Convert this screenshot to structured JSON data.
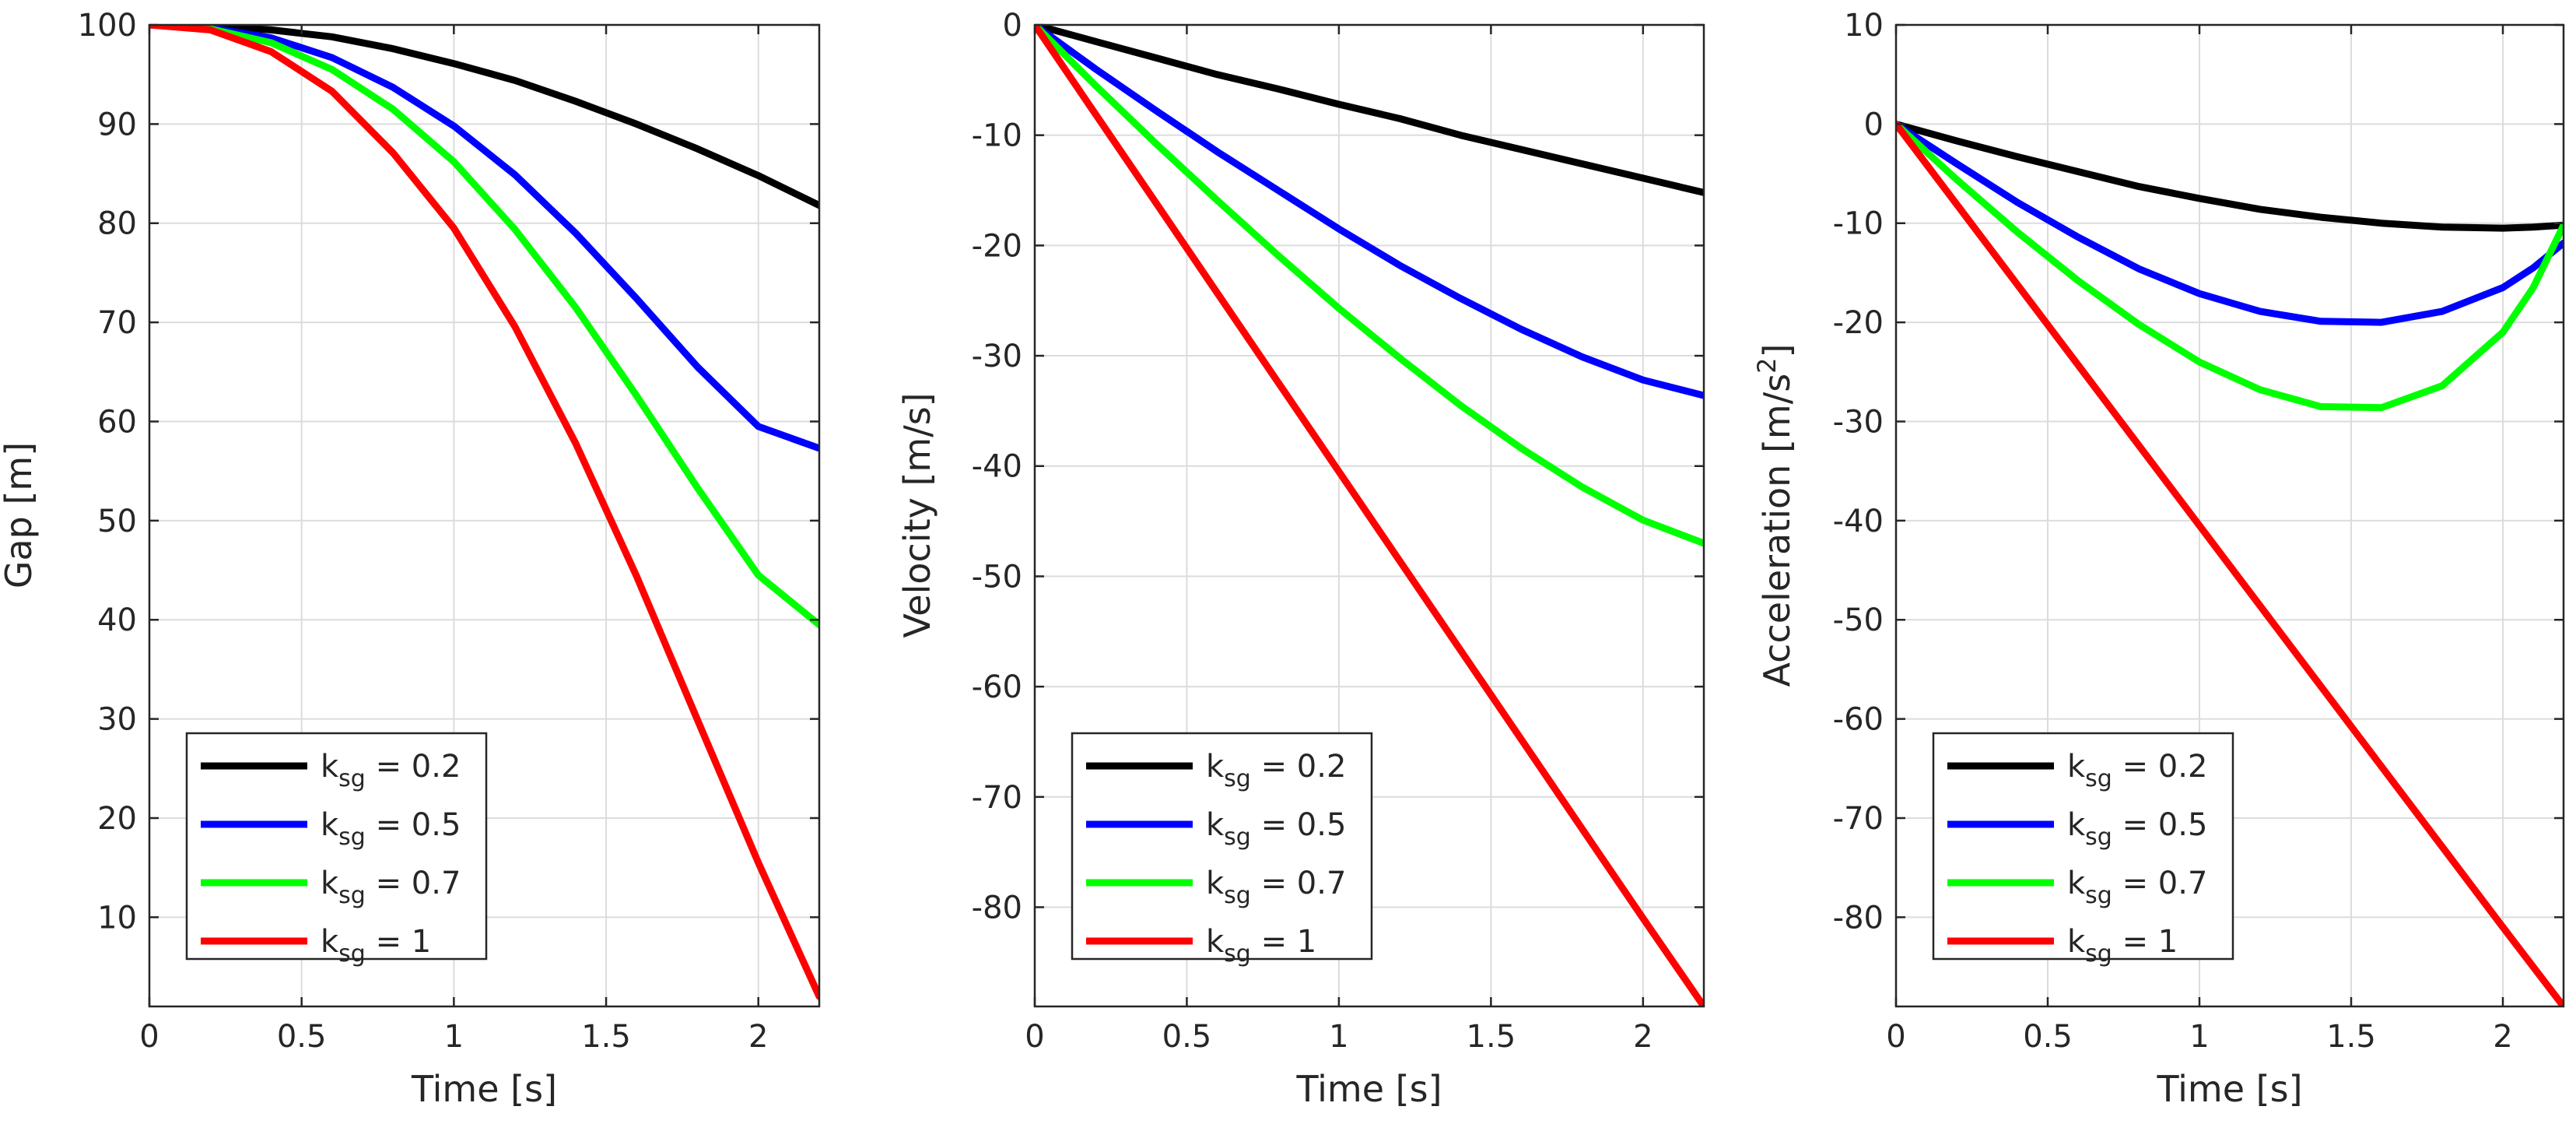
{
  "chart_data": [
    {
      "type": "line",
      "xlabel": "Time [s]",
      "ylabel": "Gap [m]",
      "xlim": [
        0,
        2.2
      ],
      "ylim": [
        1,
        100
      ],
      "xticks": [
        0,
        0.5,
        1,
        1.5,
        2
      ],
      "xtick_labels": [
        "0",
        "0.5",
        "1",
        "1.5",
        "2"
      ],
      "yticks": [
        10,
        20,
        30,
        40,
        50,
        60,
        70,
        80,
        90,
        100
      ],
      "ytick_labels": [
        "10",
        "20",
        "30",
        "40",
        "50",
        "60",
        "70",
        "80",
        "90",
        "100"
      ],
      "grid": true,
      "legend_position": "bottom-left",
      "x": [
        0,
        0.2,
        0.4,
        0.6,
        0.8,
        1.0,
        1.2,
        1.4,
        1.6,
        1.8,
        2.0,
        2.2
      ],
      "series": [
        {
          "name": "k_sg = 0.2",
          "color": "#000000",
          "values": [
            100,
            99.9,
            99.5,
            98.8,
            97.6,
            96.1,
            94.4,
            92.3,
            90.0,
            87.5,
            84.8,
            81.8
          ]
        },
        {
          "name": "k_sg = 0.5",
          "color": "#0000ff",
          "values": [
            100,
            99.7,
            98.7,
            96.7,
            93.7,
            89.8,
            84.9,
            79.0,
            72.4,
            65.5,
            59.5,
            57.3
          ]
        },
        {
          "name": "k_sg = 0.7",
          "color": "#00ff00",
          "values": [
            100,
            99.6,
            98.2,
            95.5,
            91.5,
            86.2,
            79.4,
            71.5,
            62.6,
            53.3,
            44.5,
            39.5
          ]
        },
        {
          "name": "k_sg = 1",
          "color": "#ff0000",
          "values": [
            100,
            99.5,
            97.3,
            93.3,
            87.1,
            79.5,
            69.6,
            57.8,
            44.4,
            29.9,
            15.5,
            2.0
          ]
        }
      ]
    },
    {
      "type": "line",
      "xlabel": "Time [s]",
      "ylabel": "Velocity [m/s]",
      "xlim": [
        0,
        2.2
      ],
      "ylim": [
        -89,
        0
      ],
      "xticks": [
        0,
        0.5,
        1,
        1.5,
        2
      ],
      "xtick_labels": [
        "0",
        "0.5",
        "1",
        "1.5",
        "2"
      ],
      "yticks": [
        0,
        -10,
        -20,
        -30,
        -40,
        -50,
        -60,
        -70,
        -80
      ],
      "ytick_labels": [
        "0",
        "-10",
        "-20",
        "-30",
        "-40",
        "-50",
        "-60",
        "-70",
        "-80"
      ],
      "grid": true,
      "legend_position": "bottom-left",
      "x": [
        0,
        0.2,
        0.4,
        0.6,
        0.8,
        1.0,
        1.2,
        1.4,
        1.6,
        1.8,
        2.0,
        2.2
      ],
      "series": [
        {
          "name": "k_sg = 0.2",
          "color": "#000000",
          "values": [
            0,
            -1.5,
            -3.0,
            -4.5,
            -5.8,
            -7.2,
            -8.5,
            -10.0,
            -11.3,
            -12.6,
            -13.9,
            -15.2
          ]
        },
        {
          "name": "k_sg = 0.5",
          "color": "#0000ff",
          "values": [
            0,
            -4.0,
            -7.8,
            -11.5,
            -15.0,
            -18.5,
            -21.8,
            -24.8,
            -27.6,
            -30.1,
            -32.2,
            -33.6
          ]
        },
        {
          "name": "k_sg = 0.7",
          "color": "#00ff00",
          "values": [
            0,
            -5.5,
            -10.8,
            -15.9,
            -20.9,
            -25.7,
            -30.2,
            -34.5,
            -38.4,
            -41.9,
            -44.9,
            -47.0
          ]
        },
        {
          "name": "k_sg = 1",
          "color": "#ff0000",
          "values": [
            0,
            -8.1,
            -16.2,
            -24.3,
            -32.4,
            -40.5,
            -48.6,
            -56.7,
            -64.8,
            -72.9,
            -81.0,
            -89.0
          ]
        }
      ]
    },
    {
      "type": "line",
      "xlabel": "Time [s]",
      "ylabel": "Acceleration [m/s",
      "ylabel_sup": "2",
      "ylabel_end": "]",
      "xlim": [
        0,
        2.2
      ],
      "ylim": [
        -89,
        10
      ],
      "xticks": [
        0,
        0.5,
        1,
        1.5,
        2
      ],
      "xtick_labels": [
        "0",
        "0.5",
        "1",
        "1.5",
        "2"
      ],
      "yticks": [
        10,
        0,
        -10,
        -20,
        -30,
        -40,
        -50,
        -60,
        -70,
        -80
      ],
      "ytick_labels": [
        "10",
        "0",
        "-10",
        "-20",
        "-30",
        "-40",
        "-50",
        "-60",
        "-70",
        "-80"
      ],
      "grid": true,
      "legend_position": "bottom-left",
      "x": [
        0,
        0.2,
        0.4,
        0.6,
        0.8,
        1.0,
        1.2,
        1.4,
        1.6,
        1.8,
        2.0,
        2.1,
        2.2
      ],
      "series": [
        {
          "name": "k_sg = 0.2",
          "color": "#000000",
          "values": [
            0,
            -1.7,
            -3.3,
            -4.8,
            -6.3,
            -7.5,
            -8.6,
            -9.4,
            -10.0,
            -10.4,
            -10.5,
            -10.4,
            -10.2
          ]
        },
        {
          "name": "k_sg = 0.5",
          "color": "#0000ff",
          "values": [
            0,
            -4.0,
            -7.9,
            -11.4,
            -14.6,
            -17.1,
            -18.9,
            -19.9,
            -20.0,
            -18.9,
            -16.5,
            -14.5,
            -12.0
          ]
        },
        {
          "name": "k_sg = 0.7",
          "color": "#00ff00",
          "values": [
            0,
            -5.6,
            -10.9,
            -15.8,
            -20.2,
            -24.0,
            -26.8,
            -28.5,
            -28.6,
            -26.4,
            -21.0,
            -16.5,
            -10.2
          ]
        },
        {
          "name": "k_sg = 1",
          "color": "#ff0000",
          "values": [
            0,
            -8.1,
            -16.2,
            -24.3,
            -32.4,
            -40.5,
            -48.6,
            -56.7,
            -64.8,
            -72.9,
            -81.0,
            -85.0,
            -89.0
          ]
        }
      ]
    }
  ],
  "legend": {
    "entries": [
      {
        "base": "k",
        "sub": "sg",
        "rest": " = 0.2"
      },
      {
        "base": "k",
        "sub": "sg",
        "rest": " = 0.5"
      },
      {
        "base": "k",
        "sub": "sg",
        "rest": " = 0.7"
      },
      {
        "base": "k",
        "sub": "sg",
        "rest": " = 1"
      }
    ]
  }
}
